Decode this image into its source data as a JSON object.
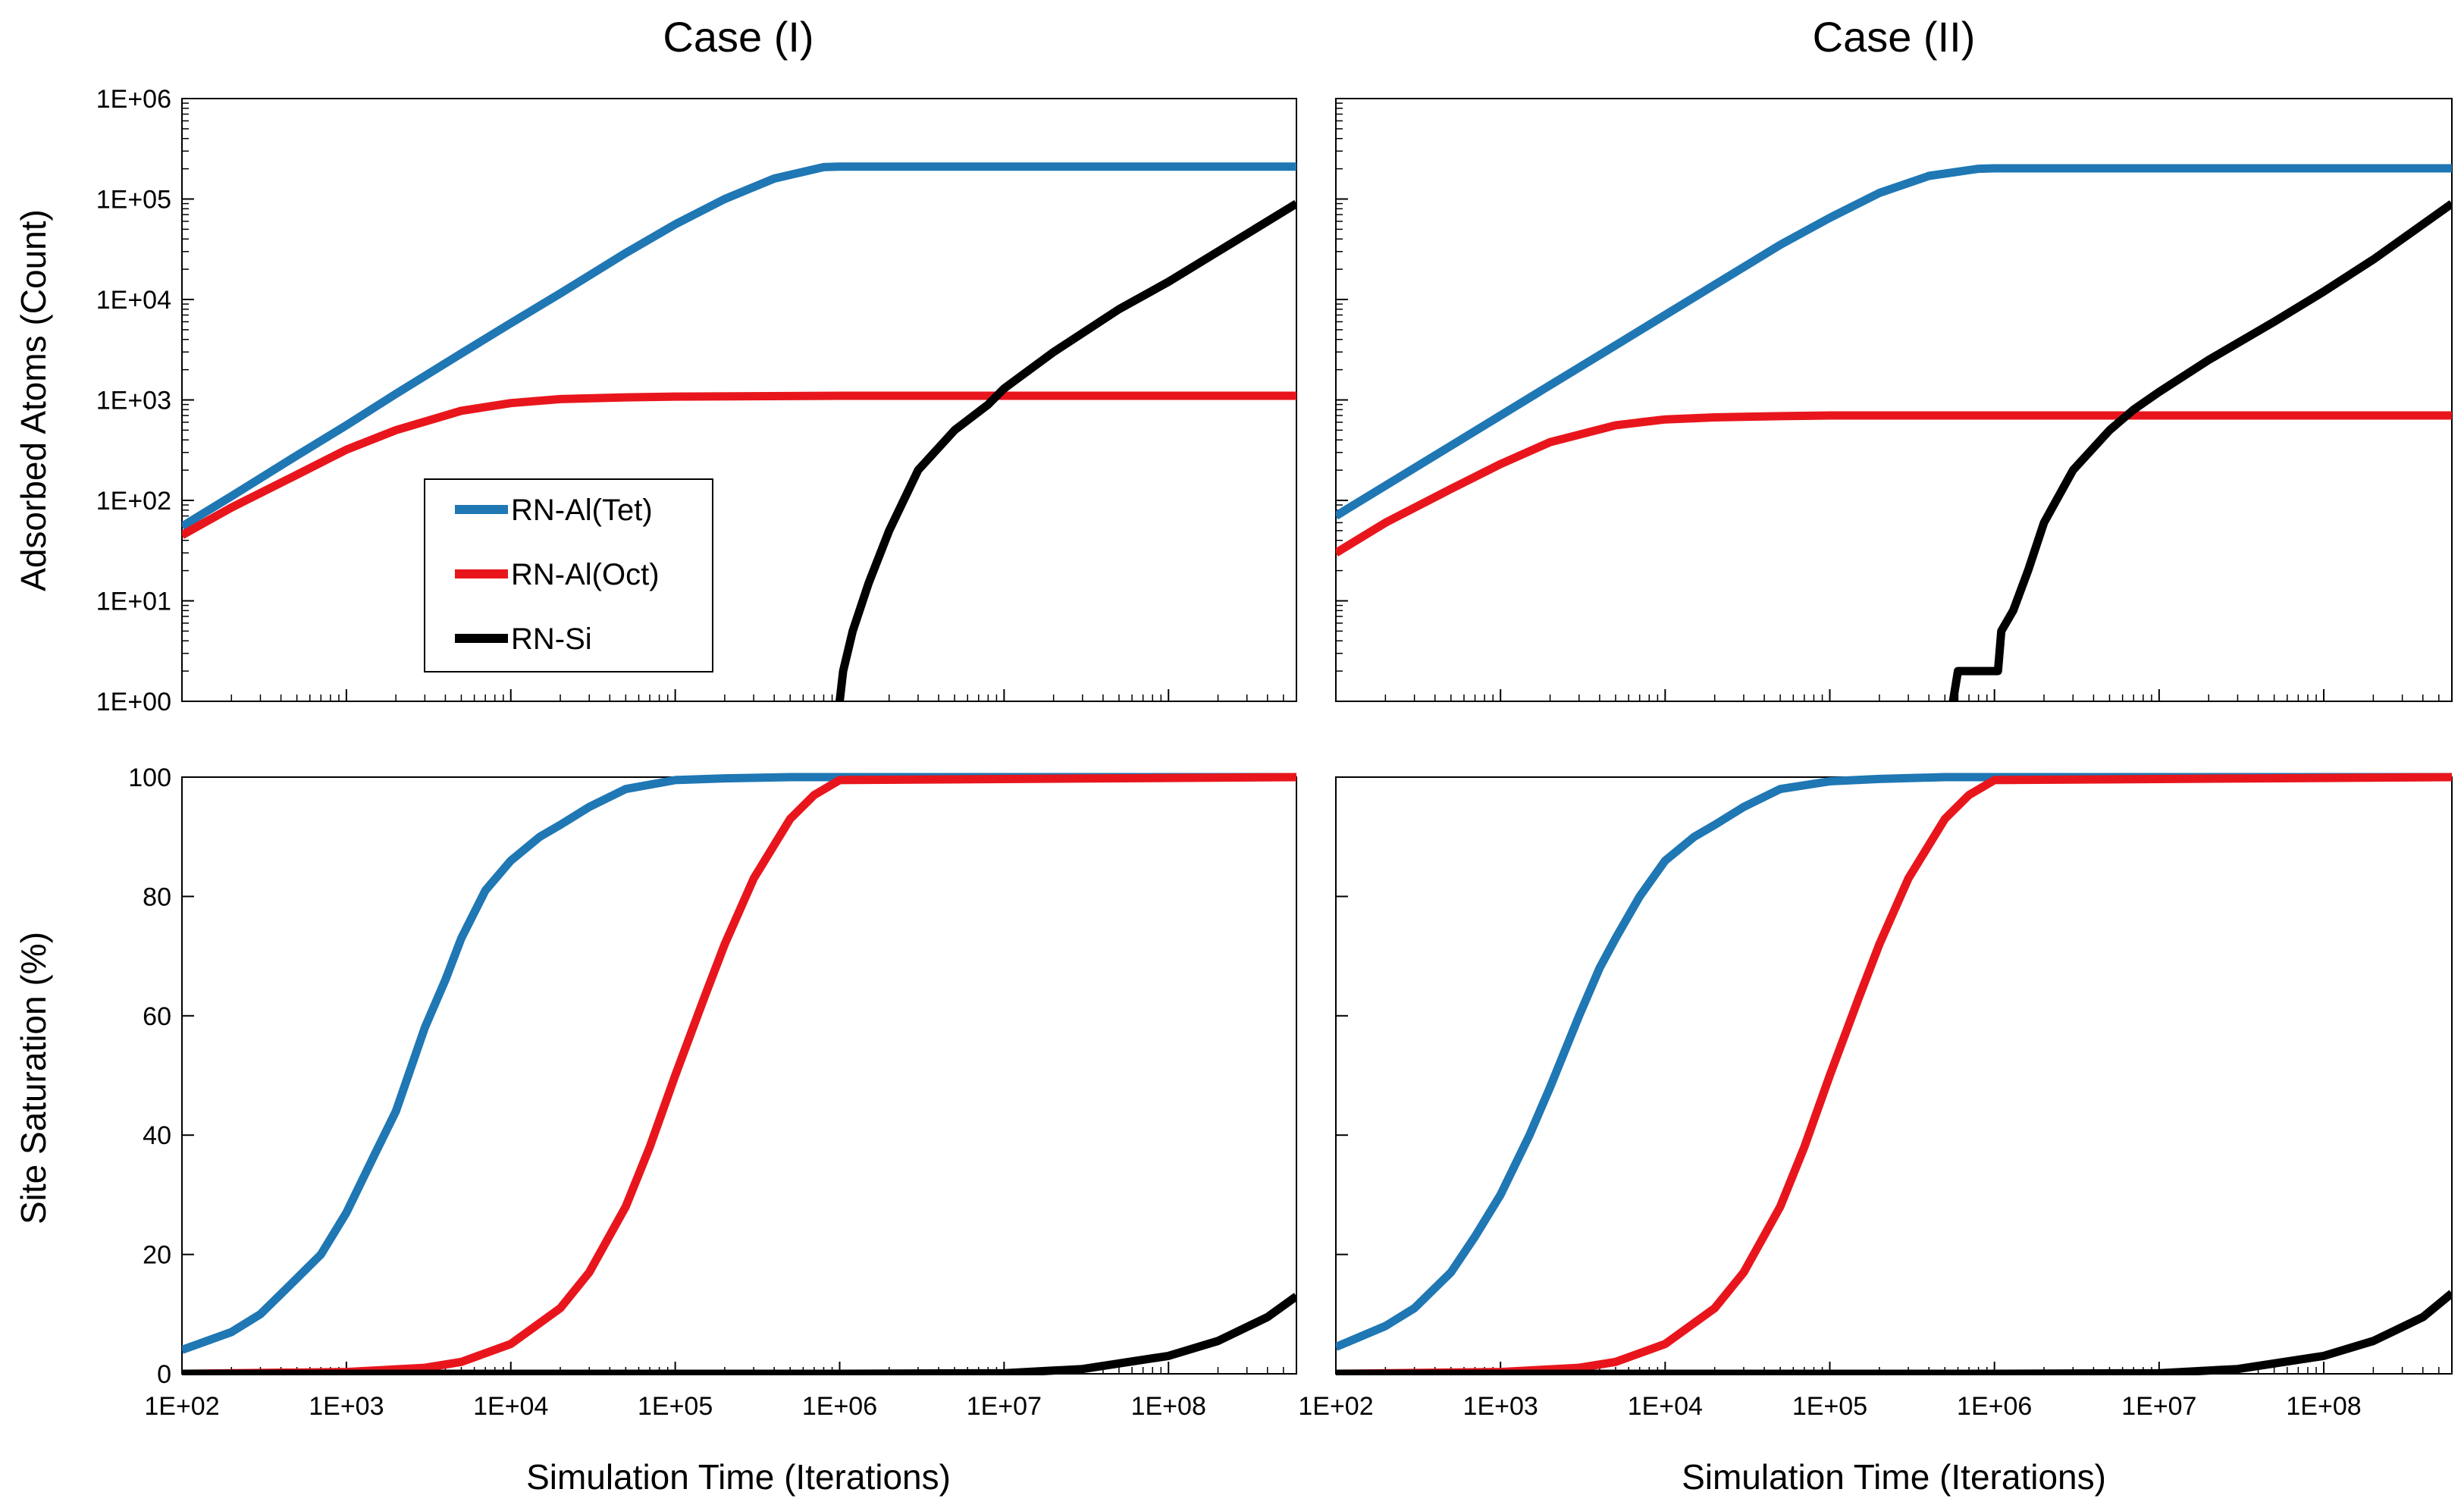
{
  "figure": {
    "column_titles": [
      "Case (I)",
      "Case (II)"
    ],
    "top_ylabel": "Adsorbed Atoms (Count)",
    "bottom_ylabel": "Site Saturation (%)",
    "xlabel": "Simulation Time (Iterations)",
    "x_tick_labels": [
      "1E+02",
      "1E+03",
      "1E+04",
      "1E+05",
      "1E+06",
      "1E+07",
      "1E+08"
    ],
    "top_y_tick_labels": [
      "1E+00",
      "1E+01",
      "1E+02",
      "1E+03",
      "1E+04",
      "1E+05",
      "1E+06"
    ],
    "bottom_y_tick_labels": [
      "0",
      "20",
      "40",
      "60",
      "80",
      "100"
    ],
    "legend": [
      "RN-Al(Tet)",
      "RN-Al(Oct)",
      "RN-Si"
    ],
    "colors": {
      "tet": "#1f77b4",
      "oct": "#e8161c",
      "si": "#000000"
    }
  },
  "chart_data": [
    {
      "id": "case1_counts",
      "type": "line",
      "title": "Case (I)",
      "xlabel": "",
      "ylabel": "Adsorbed Atoms (Count)",
      "xscale": "log",
      "yscale": "log",
      "xlim": [
        100,
        600000000
      ],
      "ylim": [
        1,
        1000000
      ],
      "legend_location": "center-left",
      "series": [
        {
          "name": "RN-Al(Tet)",
          "x": [
            100,
            200,
            500,
            1000,
            2000,
            5000,
            10000,
            20000,
            50000,
            100000,
            200000,
            400000,
            800000,
            1000000,
            10000000,
            100000000,
            600000000
          ],
          "y": [
            55,
            110,
            280,
            560,
            1150,
            2900,
            5800,
            11500,
            29000,
            56000,
            100000,
            160000,
            208000,
            210000,
            210000,
            210000,
            210000
          ]
        },
        {
          "name": "RN-Al(Oct)",
          "x": [
            100,
            200,
            500,
            1000,
            2000,
            5000,
            10000,
            20000,
            50000,
            100000,
            1000000,
            10000000,
            100000000,
            600000000
          ],
          "y": [
            45,
            85,
            180,
            320,
            500,
            780,
            930,
            1020,
            1060,
            1080,
            1100,
            1100,
            1100,
            1100
          ]
        },
        {
          "name": "RN-Si",
          "x": [
            1000000,
            1050000,
            1200000,
            1500000,
            2000000,
            3000000,
            5000000,
            8000000,
            10000000,
            20000000,
            50000000,
            100000000,
            200000000,
            600000000
          ],
          "y": [
            1,
            2,
            5,
            15,
            50,
            200,
            500,
            900,
            1300,
            3000,
            8000,
            15000,
            30000,
            90000
          ]
        }
      ]
    },
    {
      "id": "case2_counts",
      "type": "line",
      "title": "Case (II)",
      "xlabel": "",
      "ylabel": "",
      "xscale": "log",
      "yscale": "log",
      "xlim": [
        100,
        600000000
      ],
      "ylim": [
        1,
        1000000
      ],
      "series": [
        {
          "name": "RN-Al(Tet)",
          "x": [
            100,
            200,
            500,
            1000,
            2000,
            5000,
            10000,
            20000,
            50000,
            100000,
            200000,
            400000,
            800000,
            1000000,
            10000000,
            100000000,
            600000000
          ],
          "y": [
            70,
            140,
            350,
            700,
            1400,
            3500,
            7000,
            14000,
            35000,
            65000,
            115000,
            170000,
            200000,
            202000,
            202000,
            202000,
            202000
          ]
        },
        {
          "name": "RN-Al(Oct)",
          "x": [
            100,
            200,
            500,
            1000,
            2000,
            5000,
            10000,
            20000,
            50000,
            100000,
            1000000,
            10000000,
            100000000,
            600000000
          ],
          "y": [
            30,
            60,
            130,
            230,
            380,
            560,
            640,
            670,
            690,
            700,
            700,
            700,
            700,
            700
          ]
        },
        {
          "name": "RN-Si",
          "x": [
            560000,
            600000,
            1050000,
            1100000,
            1300000,
            1600000,
            2000000,
            3000000,
            5000000,
            7000000,
            10000000,
            20000000,
            50000000,
            100000000,
            200000000,
            600000000
          ],
          "y": [
            1,
            2,
            2,
            5,
            8,
            20,
            60,
            200,
            500,
            800,
            1200,
            2500,
            6000,
            12000,
            25000,
            90000
          ]
        }
      ]
    },
    {
      "id": "case1_saturation",
      "type": "line",
      "title": "",
      "xlabel": "Simulation Time (Iterations)",
      "ylabel": "Site Saturation (%)",
      "xscale": "log",
      "yscale": "linear",
      "xlim": [
        100,
        600000000
      ],
      "ylim": [
        0,
        100
      ],
      "series": [
        {
          "name": "RN-Al(Tet)",
          "x": [
            100,
            200,
            300,
            500,
            700,
            1000,
            1500,
            2000,
            3000,
            4000,
            5000,
            7000,
            10000,
            15000,
            20000,
            30000,
            50000,
            100000,
            200000,
            500000,
            1000000,
            600000000
          ],
          "y": [
            4,
            7,
            10,
            16,
            20,
            27,
            37,
            44,
            58,
            66,
            73,
            81,
            86,
            90,
            92,
            95,
            98,
            99.5,
            99.8,
            100,
            100,
            100
          ]
        },
        {
          "name": "RN-Al(Oct)",
          "x": [
            100,
            1000,
            3000,
            5000,
            10000,
            20000,
            30000,
            50000,
            70000,
            100000,
            150000,
            200000,
            300000,
            500000,
            700000,
            1000000,
            600000000
          ],
          "y": [
            0,
            0.3,
            1,
            2,
            5,
            11,
            17,
            28,
            38,
            50,
            63,
            72,
            83,
            93,
            97,
            99.5,
            100
          ]
        },
        {
          "name": "RN-Si",
          "x": [
            100,
            1000000,
            10000000,
            30000000,
            100000000,
            200000000,
            400000000,
            600000000
          ],
          "y": [
            0,
            0,
            0.1,
            0.8,
            3,
            5.5,
            9.5,
            13
          ]
        }
      ]
    },
    {
      "id": "case2_saturation",
      "type": "line",
      "title": "",
      "xlabel": "Simulation Time (Iterations)",
      "ylabel": "",
      "xscale": "log",
      "yscale": "linear",
      "xlim": [
        100,
        600000000
      ],
      "ylim": [
        0,
        100
      ],
      "series": [
        {
          "name": "RN-Al(Tet)",
          "x": [
            100,
            200,
            300,
            500,
            700,
            1000,
            1500,
            2000,
            3000,
            4000,
            5000,
            7000,
            10000,
            15000,
            20000,
            30000,
            50000,
            100000,
            200000,
            500000,
            1000000,
            600000000
          ],
          "y": [
            4.5,
            8,
            11,
            17,
            23,
            30,
            40,
            48,
            60,
            68,
            73,
            80,
            86,
            90,
            92,
            95,
            98,
            99.3,
            99.7,
            100,
            100,
            100
          ]
        },
        {
          "name": "RN-Al(Oct)",
          "x": [
            100,
            1000,
            3000,
            5000,
            10000,
            20000,
            30000,
            50000,
            70000,
            100000,
            150000,
            200000,
            300000,
            500000,
            700000,
            1000000,
            600000000
          ],
          "y": [
            0,
            0.3,
            1,
            2,
            5,
            11,
            17,
            28,
            38,
            50,
            63,
            72,
            83,
            93,
            97,
            99.5,
            100
          ]
        },
        {
          "name": "RN-Si",
          "x": [
            100,
            1000000,
            10000000,
            30000000,
            100000000,
            200000000,
            400000000,
            600000000
          ],
          "y": [
            0,
            0,
            0.1,
            0.8,
            3,
            5.5,
            9.5,
            13.5
          ]
        }
      ]
    }
  ]
}
